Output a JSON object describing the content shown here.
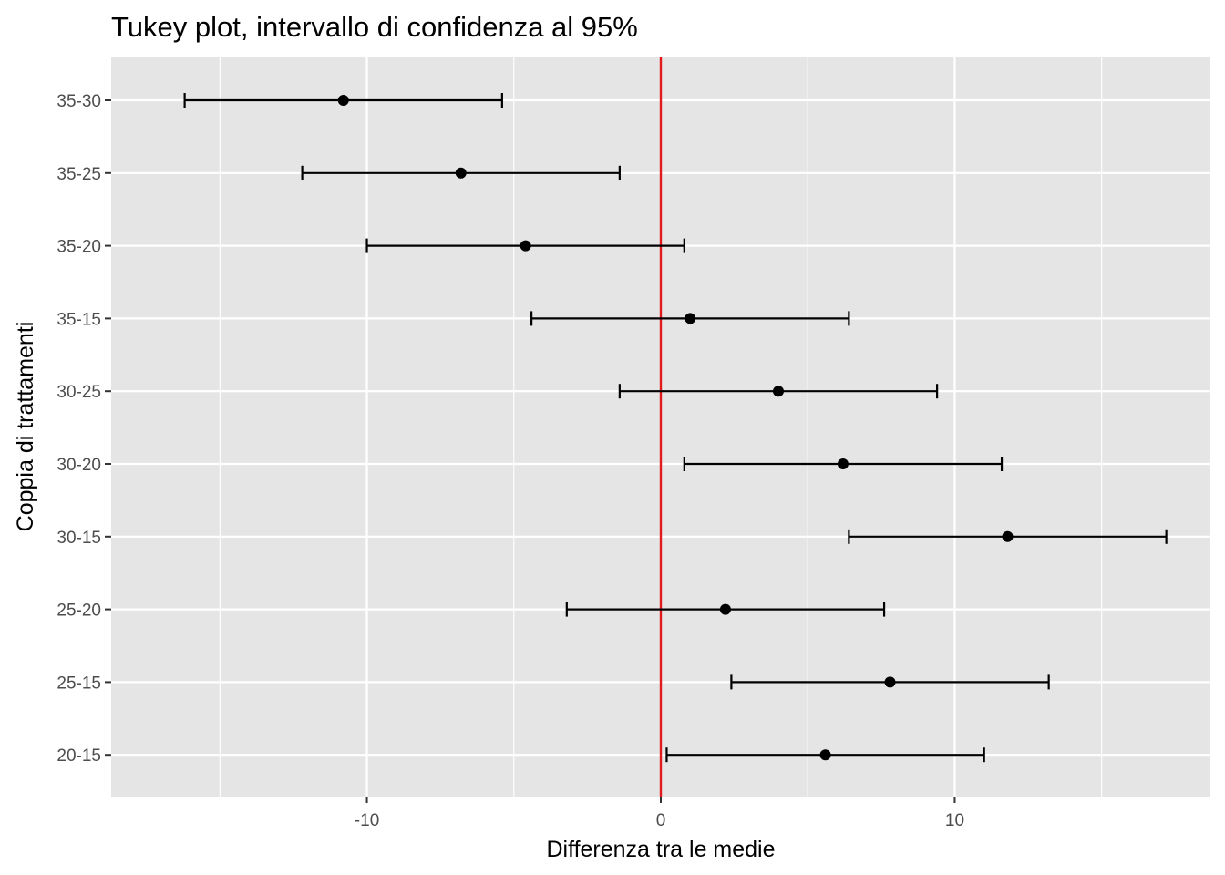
{
  "chart_data": {
    "type": "errorbar",
    "title": "Tukey plot, intervallo di confidenza al 95%",
    "xlabel": "Differenza tra le medie",
    "ylabel": "Coppia di trattamenti",
    "xlim": [
      -18.7,
      18.7
    ],
    "x_ticks": [
      -10,
      0,
      10
    ],
    "x_tick_labels": [
      "-10",
      "0",
      "10"
    ],
    "grid": true,
    "reference_line": {
      "x": 0,
      "color": "#e31a1c"
    },
    "categories": [
      "35-30",
      "35-25",
      "35-20",
      "35-15",
      "30-25",
      "30-20",
      "30-15",
      "25-20",
      "25-15",
      "20-15"
    ],
    "estimate": [
      -10.8,
      -6.8,
      -4.6,
      1.0,
      4.0,
      6.2,
      11.8,
      2.2,
      7.8,
      5.6
    ],
    "lower": [
      -16.2,
      -12.2,
      -10.0,
      -4.4,
      -1.4,
      0.8,
      6.4,
      -3.2,
      2.4,
      0.2
    ],
    "upper": [
      -5.4,
      -1.4,
      0.8,
      6.4,
      9.4,
      11.6,
      17.2,
      7.6,
      13.2,
      11.0
    ],
    "colors": {
      "panel": "#e5e5e5",
      "grid": "#ffffff",
      "marks": "#000000",
      "tick_text": "#4d4d4d"
    }
  }
}
